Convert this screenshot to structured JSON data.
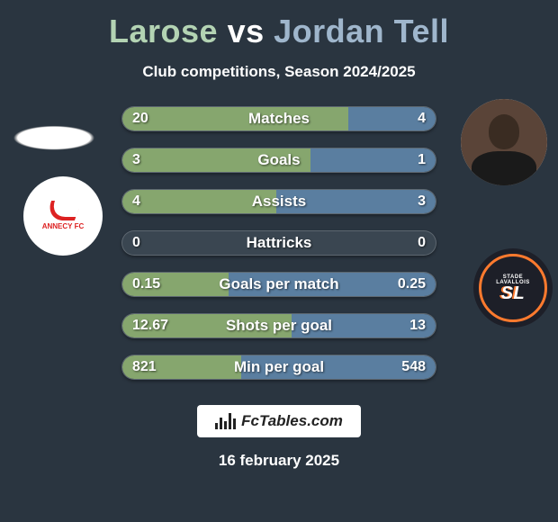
{
  "title": {
    "player1": "Larose",
    "vs": "vs",
    "player2": "Jordan Tell"
  },
  "subtitle": "Club competitions, Season 2024/2025",
  "colors": {
    "p1_bar": "#86a66e",
    "p2_bar": "#5a7ea0",
    "bar_bg": "#3a4651",
    "background": "#2a3540",
    "p1_title": "#b3d3b3",
    "p2_title": "#9fb6cc"
  },
  "club_left": {
    "name": "ANNECY FC"
  },
  "club_right": {
    "top": "STADE",
    "mid": "LAVALLOIS",
    "initials": "SL"
  },
  "stats": [
    {
      "label": "Matches",
      "v1": "20",
      "v2": "4",
      "w1": 72,
      "w2": 28
    },
    {
      "label": "Goals",
      "v1": "3",
      "v2": "1",
      "w1": 60,
      "w2": 40
    },
    {
      "label": "Assists",
      "v1": "4",
      "v2": "3",
      "w1": 49,
      "w2": 51
    },
    {
      "label": "Hattricks",
      "v1": "0",
      "v2": "0",
      "w1": 0,
      "w2": 0
    },
    {
      "label": "Goals per match",
      "v1": "0.15",
      "v2": "0.25",
      "w1": 34,
      "w2": 66
    },
    {
      "label": "Shots per goal",
      "v1": "12.67",
      "v2": "13",
      "w1": 54,
      "w2": 46
    },
    {
      "label": "Min per goal",
      "v1": "821",
      "v2": "548",
      "w1": 38,
      "w2": 62
    }
  ],
  "footer_brand": "FcTables.com",
  "date": "16 february 2025"
}
